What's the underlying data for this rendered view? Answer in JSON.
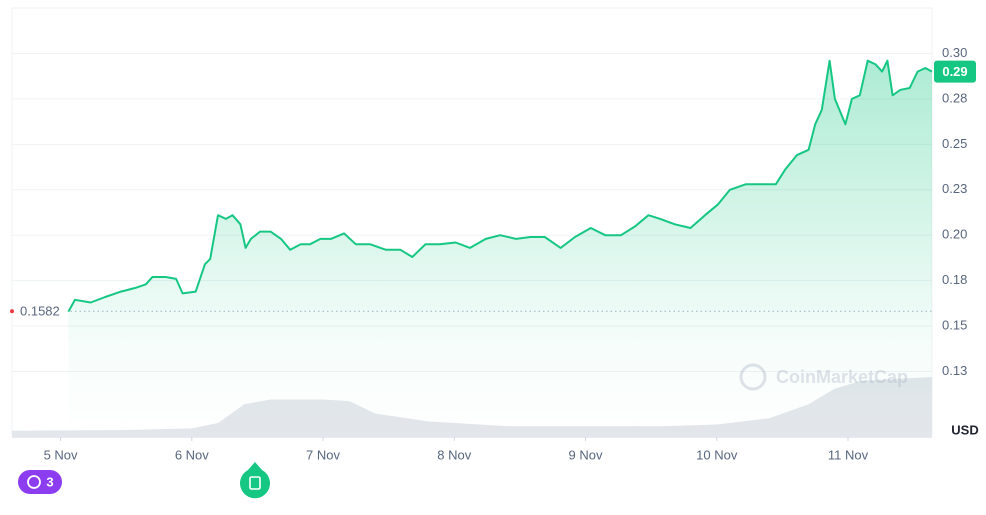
{
  "chart_data": {
    "type": "line",
    "x": [
      0.06,
      0.11,
      0.23,
      0.34,
      0.46,
      0.57,
      0.65,
      0.7,
      0.8,
      0.88,
      0.93,
      1.03,
      1.1,
      1.14,
      1.2,
      1.26,
      1.31,
      1.37,
      1.41,
      1.45,
      1.52,
      1.6,
      1.68,
      1.75,
      1.83,
      1.9,
      1.98,
      2.06,
      2.16,
      2.25,
      2.36,
      2.48,
      2.59,
      2.68,
      2.78,
      2.89,
      3.01,
      3.12,
      3.24,
      3.35,
      3.47,
      3.58,
      3.69,
      3.81,
      3.92,
      4.04,
      4.15,
      4.27,
      4.38,
      4.48,
      4.57,
      4.68,
      4.8,
      4.91,
      5.01,
      5.1,
      5.22,
      5.33,
      5.45,
      5.52,
      5.61,
      5.7,
      5.75,
      5.8,
      5.86,
      5.9,
      5.98,
      6.03,
      6.09,
      6.15,
      6.21,
      6.26,
      6.3,
      6.34,
      6.4,
      6.47,
      6.53,
      6.59,
      6.64
    ],
    "series": [
      {
        "color": "#16c784",
        "values": [
          0.158,
          0.1645,
          0.163,
          0.166,
          0.169,
          0.171,
          0.173,
          0.177,
          0.177,
          0.176,
          0.168,
          0.169,
          0.184,
          0.187,
          0.211,
          0.209,
          0.211,
          0.206,
          0.193,
          0.198,
          0.202,
          0.202,
          0.198,
          0.192,
          0.195,
          0.195,
          0.198,
          0.198,
          0.201,
          0.195,
          0.195,
          0.192,
          0.192,
          0.188,
          0.195,
          0.195,
          0.196,
          0.193,
          0.198,
          0.2,
          0.198,
          0.199,
          0.199,
          0.193,
          0.199,
          0.204,
          0.2,
          0.2,
          0.205,
          0.211,
          0.209,
          0.206,
          0.204,
          0.211,
          0.217,
          0.225,
          0.228,
          0.228,
          0.228,
          0.236,
          0.244,
          0.247,
          0.261,
          0.269,
          0.296,
          0.275,
          0.261,
          0.275,
          0.277,
          0.296,
          0.294,
          0.29,
          0.296,
          0.277,
          0.28,
          0.281,
          0.29,
          0.292,
          0.29
        ]
      }
    ],
    "xlim": [
      -0.37,
      6.64
    ],
    "xticks": [
      {
        "value": 0,
        "label": "5 Nov"
      },
      {
        "value": 1,
        "label": "6 Nov"
      },
      {
        "value": 2,
        "label": "7 Nov"
      },
      {
        "value": 3,
        "label": "8 Nov"
      },
      {
        "value": 4,
        "label": "9 Nov"
      },
      {
        "value": 5,
        "label": "10 Nov"
      },
      {
        "value": 6,
        "label": "11 Nov"
      }
    ],
    "ylim": [
      0.089,
      0.325
    ],
    "yticks": [
      {
        "value": 0.125,
        "label": "0.13"
      },
      {
        "value": 0.15,
        "label": "0.15"
      },
      {
        "value": 0.175,
        "label": "0.18"
      },
      {
        "value": 0.2,
        "label": "0.20"
      },
      {
        "value": 0.225,
        "label": "0.23"
      },
      0.25,
      {
        "value": 0.275,
        "label": "0.28"
      },
      {
        "value": 0.3,
        "label": "0.30"
      }
    ],
    "grid": true,
    "reference_line": 0.1582,
    "current_price": 0.29,
    "unit_label": "USD",
    "watermark": "CoinMarketCap",
    "event_count": 3,
    "volume": {
      "color": "#e3e6eb",
      "ylim": [
        0,
        100
      ],
      "x": [
        -0.37,
        0.5,
        1.0,
        1.2,
        1.4,
        1.6,
        2.0,
        2.2,
        2.4,
        2.8,
        3.4,
        4.0,
        4.6,
        5.0,
        5.4,
        5.7,
        5.9,
        6.1,
        6.64
      ],
      "values": [
        8,
        9,
        11,
        18,
        42,
        48,
        48,
        46,
        30,
        20,
        14,
        14,
        14,
        16,
        24,
        42,
        62,
        72,
        77
      ]
    }
  }
}
